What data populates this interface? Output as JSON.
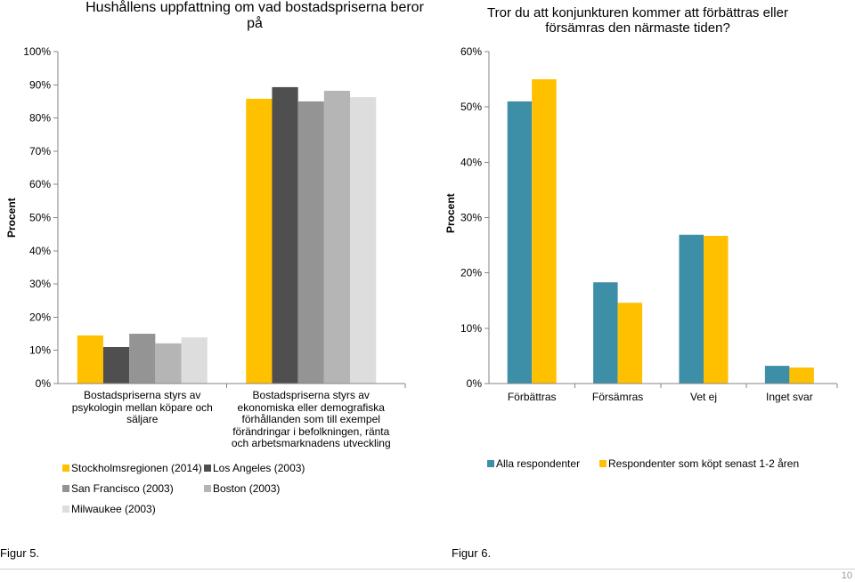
{
  "captions": {
    "figure_5": "Figur 5.",
    "figure_6": "Figur 6."
  },
  "page_number": "10",
  "chart_data": [
    {
      "type": "bar",
      "title": "Hushållens uppfattning om vad bostadspriserna beror på",
      "xlabel": "",
      "ylabel": "Procent",
      "ylim": [
        0,
        100
      ],
      "yticks": [
        "0%",
        "10%",
        "20%",
        "30%",
        "40%",
        "50%",
        "60%",
        "70%",
        "80%",
        "90%",
        "100%"
      ],
      "grid": false,
      "legend_position": "bottom",
      "categories": [
        "Bostadspriserna styrs av psykologin mellan köpare och säljare",
        "Bostadspriserna styrs av ekonomiska eller demografiska förhållanden som till exempel förändringar i befolkningen, ränta och arbetsmarknadens utveckling"
      ],
      "series": [
        {
          "name": "Stockholmsregionen (2014)",
          "color": "#FFC000",
          "values": [
            14.5,
            85.8
          ]
        },
        {
          "name": "Los Angeles (2003)",
          "color": "#4F4F4F",
          "values": [
            11.0,
            89.3
          ]
        },
        {
          "name": "San Francisco (2003)",
          "color": "#949494",
          "values": [
            15.0,
            85.0
          ]
        },
        {
          "name": "Boston (2003)",
          "color": "#B5B5B5",
          "values": [
            12.1,
            88.2
          ]
        },
        {
          "name": "Milwaukee (2003)",
          "color": "#DDDDDD",
          "values": [
            13.9,
            86.3
          ]
        }
      ]
    },
    {
      "type": "bar",
      "title": "Tror du att konjunkturen kommer att förbättras eller försämras den närmaste tiden?",
      "xlabel": "",
      "ylabel": "Procent",
      "ylim": [
        0,
        60
      ],
      "yticks": [
        "0%",
        "10%",
        "20%",
        "30%",
        "40%",
        "50%",
        "60%"
      ],
      "grid": false,
      "legend_position": "bottom",
      "categories": [
        "Förbättras",
        "Försämras",
        "Vet ej",
        "Inget svar"
      ],
      "series": [
        {
          "name": "Alla respondenter",
          "color": "#3C8FA6",
          "values": [
            51.0,
            18.3,
            26.9,
            3.2
          ]
        },
        {
          "name": "Respondenter som köpt senast 1-2 åren",
          "color": "#FFC000",
          "values": [
            55.0,
            14.6,
            26.7,
            2.9
          ]
        }
      ]
    }
  ]
}
